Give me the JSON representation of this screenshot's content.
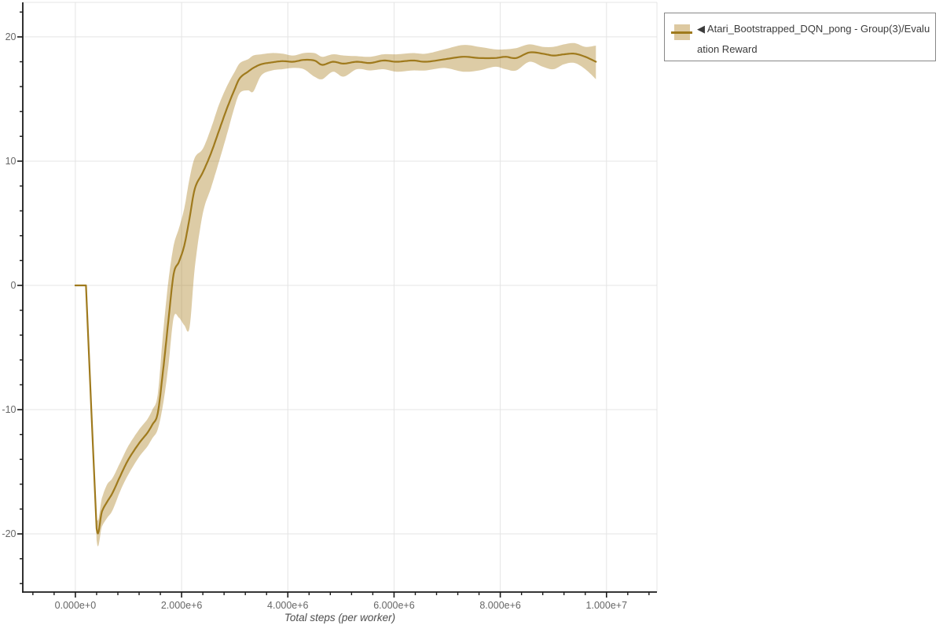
{
  "colors": {
    "line": "#9f7a1d",
    "band_fill": "rgba(174,134,44,0.42)",
    "band_solid": "#ddc9a1",
    "grid": "#e4e4e4",
    "spine": "#1a1a1a",
    "tick_label": "#666666",
    "axis_title": "#4d4d4d",
    "legend_border": "#888888",
    "legend_text": "#3c3c3c"
  },
  "legend": {
    "marker": "◀",
    "label": "Atari_Bootstrapped_DQN_pong - Group(3)/Evaluation Reward"
  },
  "chart_data": {
    "type": "line",
    "title": "",
    "xlabel": "Total steps (per worker)",
    "ylabel": "",
    "grid": true,
    "legend_position": "outside-top-right",
    "xlim": [
      -990000,
      10950000
    ],
    "ylim": [
      -24.68,
      22.78
    ],
    "x_major_ticks": [
      {
        "value": 0,
        "label": "0.000e+0"
      },
      {
        "value": 2000000,
        "label": "2.000e+6"
      },
      {
        "value": 4000000,
        "label": "4.000e+6"
      },
      {
        "value": 6000000,
        "label": "6.000e+6"
      },
      {
        "value": 8000000,
        "label": "8.000e+6"
      },
      {
        "value": 10000000,
        "label": "1.000e+7"
      }
    ],
    "y_major_ticks": [
      {
        "value": 20,
        "label": "20"
      },
      {
        "value": 10,
        "label": "10"
      },
      {
        "value": 0,
        "label": "0"
      },
      {
        "value": -10,
        "label": "-10"
      },
      {
        "value": -20,
        "label": "-20"
      }
    ],
    "x_minor": {
      "start": -800000,
      "step": 400000,
      "end": 10800000
    },
    "y_minor": {
      "start": -24,
      "step": 2,
      "end": 22
    },
    "series": [
      {
        "name": "Atari_Bootstrapped_DQN_pong - Group(3)/Evaluation Reward",
        "sharp_segments": 3,
        "points": [
          [
            0,
            0,
            0,
            0
          ],
          [
            200000,
            0,
            0,
            0
          ],
          [
            300000,
            -10,
            -10.2,
            -9.8
          ],
          [
            400000,
            -19.55,
            -20.5,
            -18.6
          ],
          [
            500000,
            -18.2,
            -19.4,
            -17.1
          ],
          [
            600000,
            -17.4,
            -18.7,
            -16.0
          ],
          [
            700000,
            -16.7,
            -18.1,
            -15.5
          ],
          [
            850000,
            -15.3,
            -16.5,
            -14.2
          ],
          [
            1000000,
            -14.0,
            -15.2,
            -12.9
          ],
          [
            1200000,
            -12.7,
            -13.8,
            -11.6
          ],
          [
            1350000,
            -11.9,
            -13.0,
            -10.8
          ],
          [
            1450000,
            -11.2,
            -12.3,
            -10.0
          ],
          [
            1550000,
            -10.3,
            -11.6,
            -8.8
          ],
          [
            1650000,
            -6.9,
            -9.6,
            -3.9
          ],
          [
            1750000,
            -2.9,
            -6.5,
            0.3
          ],
          [
            1850000,
            0.9,
            -2.6,
            3.2
          ],
          [
            1950000,
            1.9,
            -2.6,
            4.6
          ],
          [
            2050000,
            3.2,
            -3.2,
            6.2
          ],
          [
            2150000,
            5.4,
            -3.4,
            8.6
          ],
          [
            2250000,
            7.8,
            1.5,
            10.3
          ],
          [
            2400000,
            9.1,
            5.8,
            11.0
          ],
          [
            2550000,
            10.6,
            7.8,
            12.6
          ],
          [
            2700000,
            12.4,
            9.9,
            14.5
          ],
          [
            2850000,
            14.2,
            12.1,
            16.0
          ],
          [
            3000000,
            15.8,
            14.4,
            17.2
          ],
          [
            3100000,
            16.7,
            15.5,
            17.9
          ],
          [
            3250000,
            17.2,
            15.7,
            18.2
          ],
          [
            3350000,
            17.5,
            15.6,
            18.5
          ],
          [
            3500000,
            17.8,
            16.9,
            18.6
          ],
          [
            3700000,
            17.95,
            17.3,
            18.7
          ],
          [
            3900000,
            18.05,
            17.4,
            18.65
          ],
          [
            4100000,
            18.0,
            17.5,
            18.5
          ],
          [
            4300000,
            18.15,
            17.4,
            18.7
          ],
          [
            4500000,
            18.1,
            16.8,
            18.7
          ],
          [
            4650000,
            17.75,
            16.6,
            18.4
          ],
          [
            4850000,
            18.0,
            17.2,
            18.6
          ],
          [
            5050000,
            17.85,
            16.8,
            18.5
          ],
          [
            5300000,
            18.0,
            17.4,
            18.45
          ],
          [
            5550000,
            17.9,
            17.3,
            18.4
          ],
          [
            5800000,
            18.1,
            17.4,
            18.6
          ],
          [
            6050000,
            18.0,
            17.2,
            18.6
          ],
          [
            6350000,
            18.1,
            17.3,
            18.7
          ],
          [
            6600000,
            18.0,
            17.3,
            18.65
          ],
          [
            6950000,
            18.2,
            17.5,
            19.0
          ],
          [
            7300000,
            18.4,
            17.2,
            19.35
          ],
          [
            7600000,
            18.3,
            17.3,
            19.2
          ],
          [
            7900000,
            18.3,
            17.6,
            19.0
          ],
          [
            8100000,
            18.4,
            17.4,
            19.0
          ],
          [
            8300000,
            18.3,
            17.3,
            19.1
          ],
          [
            8550000,
            18.75,
            18.0,
            19.4
          ],
          [
            8800000,
            18.65,
            17.6,
            19.2
          ],
          [
            9000000,
            18.5,
            17.4,
            19.2
          ],
          [
            9200000,
            18.6,
            17.8,
            19.4
          ],
          [
            9400000,
            18.65,
            17.9,
            19.5
          ],
          [
            9600000,
            18.4,
            17.4,
            19.2
          ],
          [
            9800000,
            18.0,
            16.6,
            19.3
          ]
        ]
      }
    ]
  }
}
